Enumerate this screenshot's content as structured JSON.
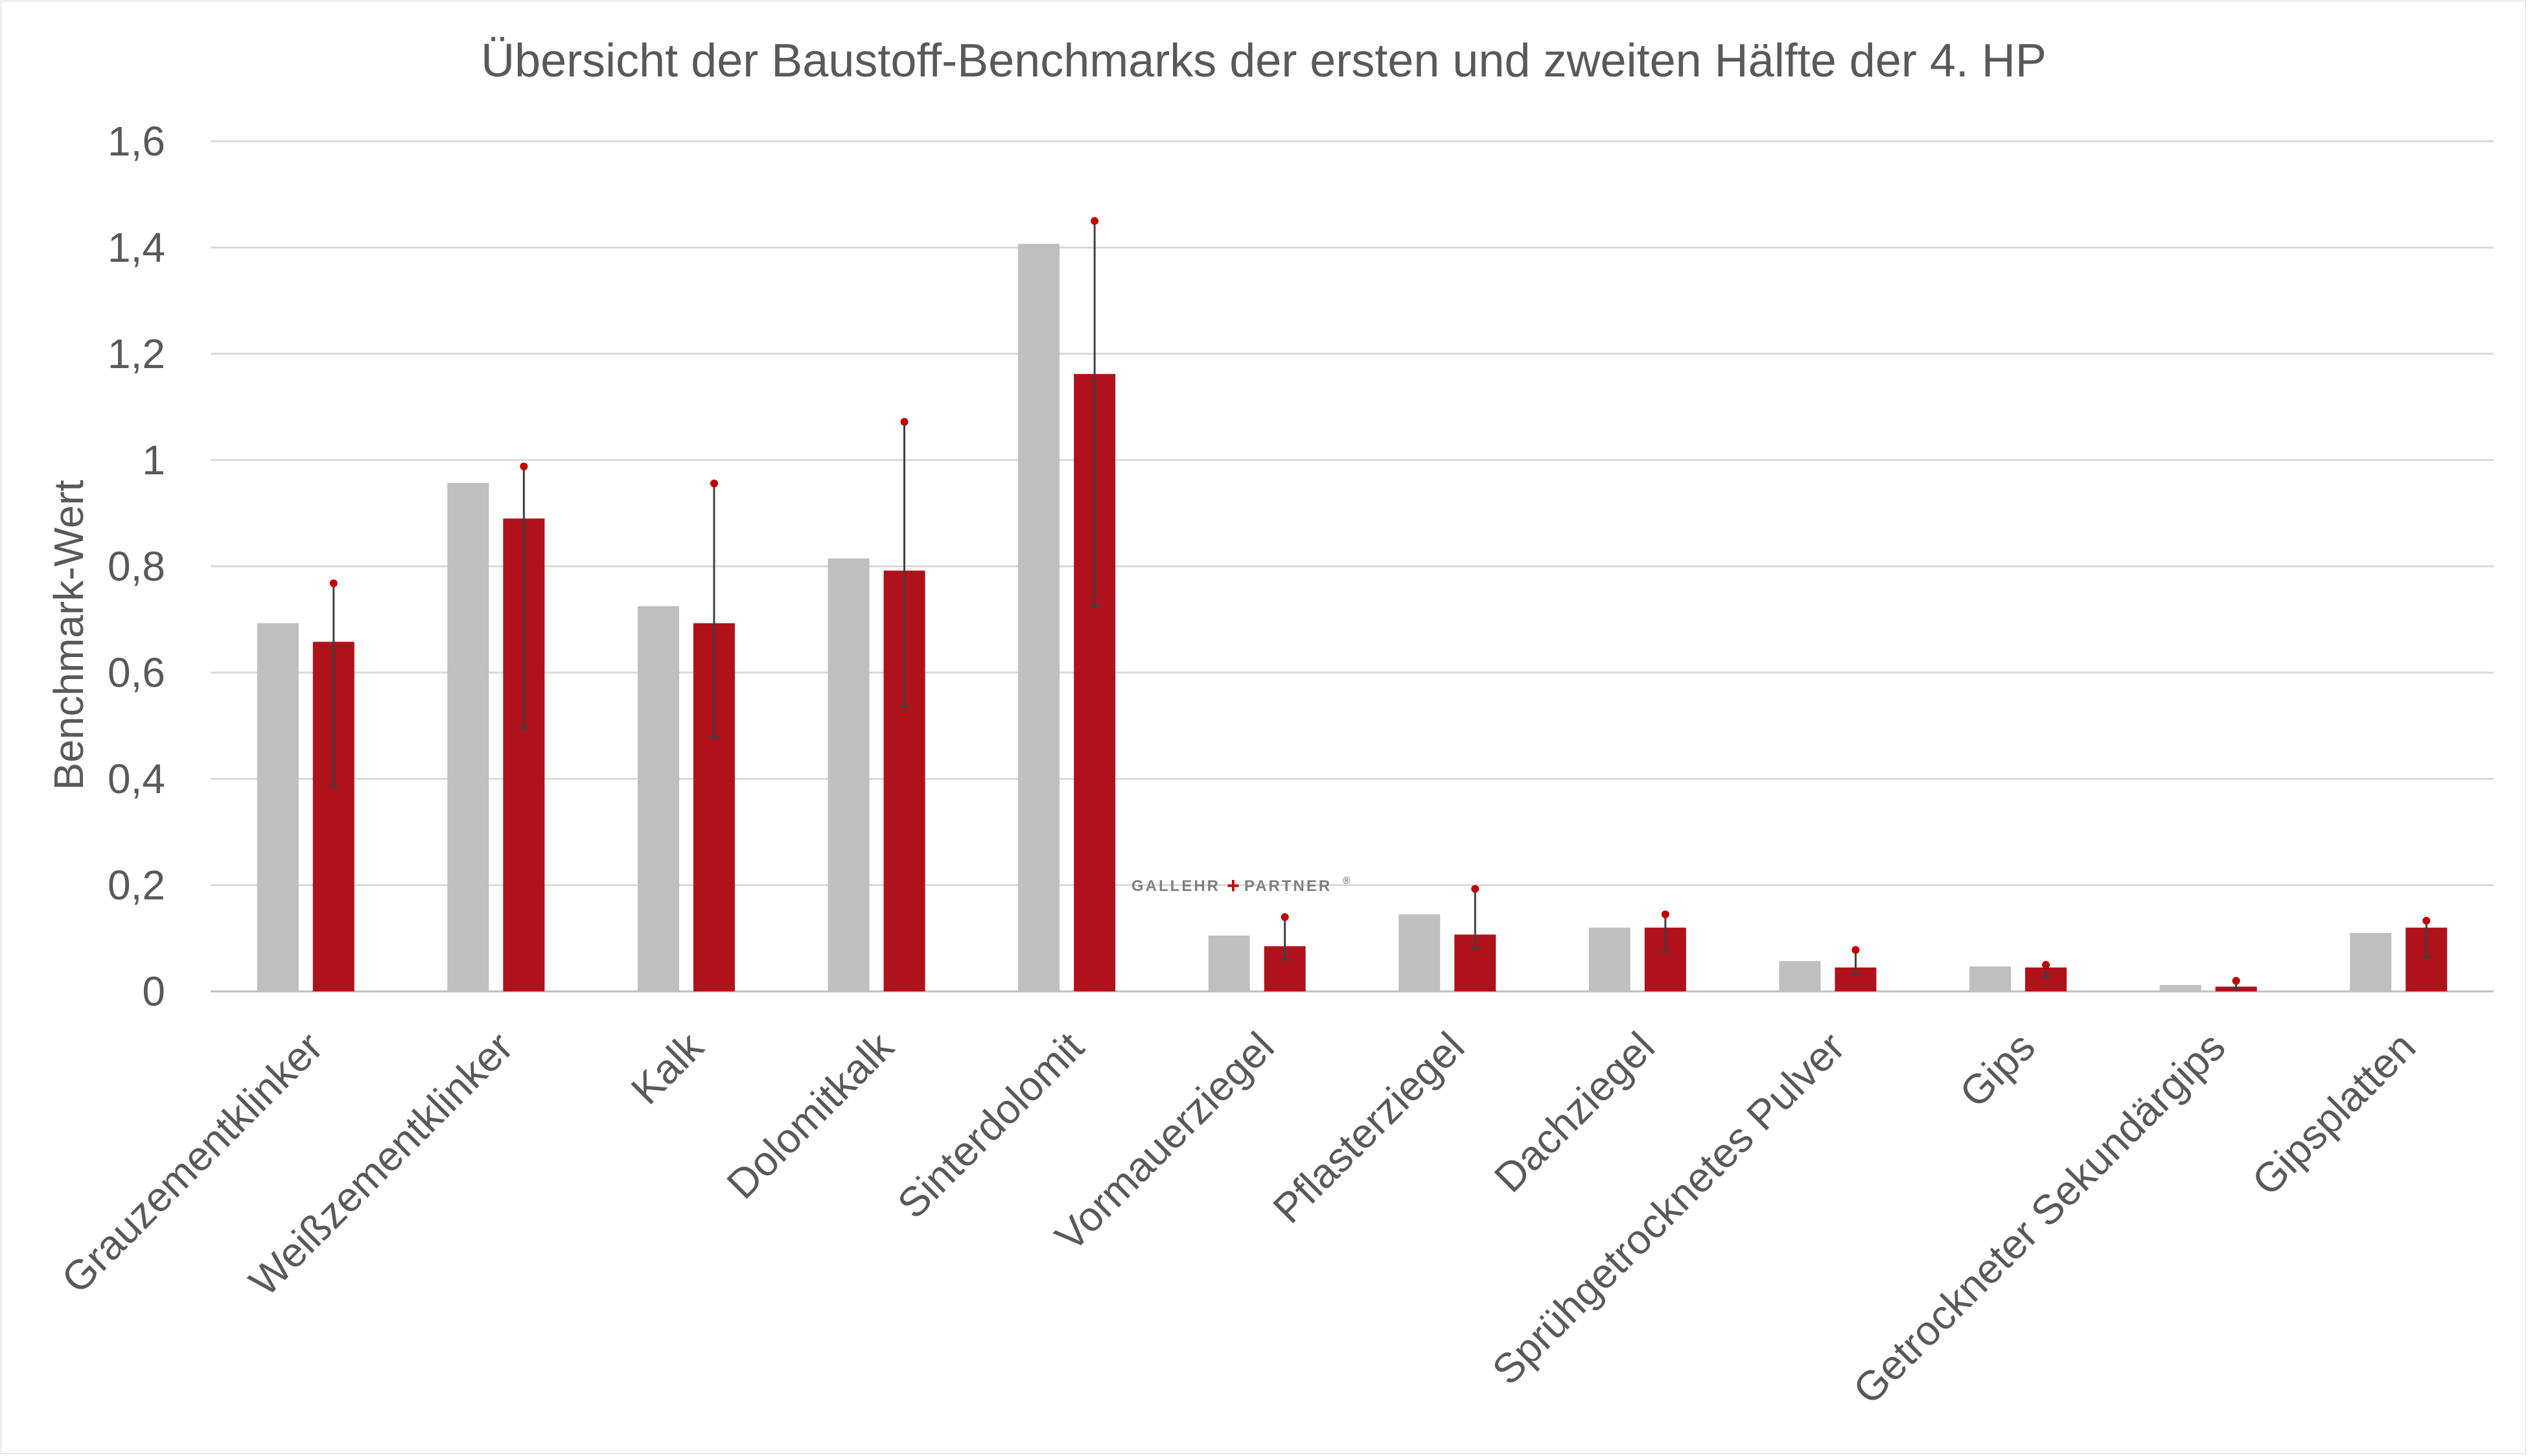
{
  "chart_data": {
    "type": "bar",
    "title": "Übersicht der Baustoff-Benchmarks der ersten und zweiten Hälfte der 4. HP",
    "xlabel": "",
    "ylabel": "Benchmark-Wert",
    "ylim": [
      0,
      1.6
    ],
    "yticks": [
      {
        "value": 0,
        "label": "0"
      },
      {
        "value": 0.2,
        "label": "0,2"
      },
      {
        "value": 0.4,
        "label": "0,4"
      },
      {
        "value": 0.6,
        "label": "0,6"
      },
      {
        "value": 0.8,
        "label": "0,8"
      },
      {
        "value": 1.0,
        "label": "1"
      },
      {
        "value": 1.2,
        "label": "1,2"
      },
      {
        "value": 1.4,
        "label": "1,4"
      },
      {
        "value": 1.6,
        "label": "1,6"
      }
    ],
    "grid": true,
    "legend": "none",
    "categories": [
      "Grauzementklinker",
      "Weißzementklinker",
      "Kalk",
      "Dolomitkalk",
      "Sinterdolomit",
      "Vormauerziegel",
      "Pflasterziegel",
      "Dachziegel",
      "Sprühgetrocknetes Pulver",
      "Gips",
      "Getrockneter Sekundärgips",
      "Gipsplatten"
    ],
    "series": [
      {
        "color": "#bfbfbf",
        "values": [
          0.693,
          0.957,
          0.725,
          0.815,
          1.407,
          0.105,
          0.145,
          0.12,
          0.057,
          0.047,
          0.012,
          0.11
        ]
      },
      {
        "color": "#b0121b",
        "values": [
          0.658,
          0.89,
          0.693,
          0.792,
          1.162,
          0.085,
          0.107,
          0.12,
          0.045,
          0.045,
          0.009,
          0.12
        ],
        "error_low": [
          0.385,
          0.495,
          0.478,
          0.535,
          0.725,
          0.06,
          0.08,
          0.075,
          0.032,
          0.028,
          0.005,
          0.065
        ],
        "error_high": [
          0.768,
          0.988,
          0.956,
          1.072,
          1.45,
          0.14,
          0.193,
          0.145,
          0.078,
          0.05,
          0.02,
          0.133
        ],
        "error_marker_color": "#c00000"
      }
    ]
  },
  "watermark": {
    "left": "GALLEHR",
    "plus": "+",
    "right": "PARTNER",
    "mark": "®"
  }
}
